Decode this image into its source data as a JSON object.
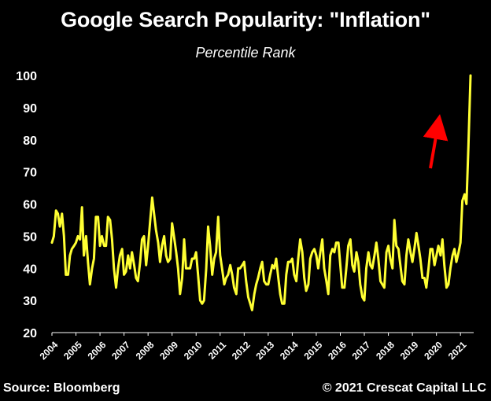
{
  "chart_data": {
    "type": "line",
    "title": "Google Search Popularity: \"Inflation\"",
    "subtitle": "Percentile Rank",
    "xlabel": "",
    "ylabel": "",
    "ylim": [
      20,
      100
    ],
    "yticks": [
      20,
      30,
      40,
      50,
      60,
      70,
      80,
      90,
      100
    ],
    "xticks": [
      "2004",
      "2005",
      "2006",
      "2007",
      "2008",
      "2009",
      "2010",
      "2011",
      "2012",
      "2013",
      "2014",
      "2015",
      "2016",
      "2017",
      "2018",
      "2019",
      "2020",
      "2021"
    ],
    "xlim": [
      2004,
      2021.55
    ],
    "grid": false,
    "legend": "none",
    "line_color": "#ffff33",
    "arrow_color": "#ff0000",
    "series": [
      {
        "x": [
          2004.0,
          2004.08,
          2004.17,
          2004.25,
          2004.33,
          2004.42,
          2004.5,
          2004.58,
          2004.67,
          2004.75,
          2004.83,
          2004.92,
          2005.0,
          2005.08,
          2005.17,
          2005.25,
          2005.33,
          2005.42,
          2005.5,
          2005.58,
          2005.67,
          2005.75,
          2005.83,
          2005.92,
          2006.0,
          2006.08,
          2006.17,
          2006.25,
          2006.33,
          2006.42,
          2006.5,
          2006.58,
          2006.67,
          2006.75,
          2006.83,
          2006.92,
          2007.0,
          2007.08,
          2007.17,
          2007.25,
          2007.33,
          2007.42,
          2007.5,
          2007.58,
          2007.67,
          2007.75,
          2007.83,
          2007.92,
          2008.0,
          2008.08,
          2008.17,
          2008.25,
          2008.33,
          2008.42,
          2008.5,
          2008.58,
          2008.67,
          2008.75,
          2008.83,
          2008.92,
          2009.0,
          2009.08,
          2009.17,
          2009.25,
          2009.33,
          2009.42,
          2009.5,
          2009.58,
          2009.67,
          2009.75,
          2009.83,
          2009.92,
          2010.0,
          2010.08,
          2010.17,
          2010.25,
          2010.33,
          2010.42,
          2010.5,
          2010.58,
          2010.67,
          2010.75,
          2010.83,
          2010.92,
          2011.0,
          2011.08,
          2011.17,
          2011.25,
          2011.33,
          2011.42,
          2011.5,
          2011.58,
          2011.67,
          2011.75,
          2011.83,
          2011.92,
          2012.0,
          2012.08,
          2012.17,
          2012.25,
          2012.33,
          2012.42,
          2012.5,
          2012.58,
          2012.67,
          2012.75,
          2012.83,
          2012.92,
          2013.0,
          2013.08,
          2013.17,
          2013.25,
          2013.33,
          2013.42,
          2013.5,
          2013.58,
          2013.67,
          2013.75,
          2013.83,
          2013.92,
          2014.0,
          2014.08,
          2014.17,
          2014.25,
          2014.33,
          2014.42,
          2014.5,
          2014.58,
          2014.67,
          2014.75,
          2014.83,
          2014.92,
          2015.0,
          2015.08,
          2015.17,
          2015.25,
          2015.33,
          2015.42,
          2015.5,
          2015.58,
          2015.67,
          2015.75,
          2015.83,
          2015.92,
          2016.0,
          2016.08,
          2016.17,
          2016.25,
          2016.33,
          2016.42,
          2016.5,
          2016.58,
          2016.67,
          2016.75,
          2016.83,
          2016.92,
          2017.0,
          2017.08,
          2017.17,
          2017.25,
          2017.33,
          2017.42,
          2017.5,
          2017.58,
          2017.67,
          2017.75,
          2017.83,
          2017.92,
          2018.0,
          2018.08,
          2018.17,
          2018.25,
          2018.33,
          2018.42,
          2018.5,
          2018.58,
          2018.67,
          2018.75,
          2018.83,
          2018.92,
          2019.0,
          2019.08,
          2019.17,
          2019.25,
          2019.33,
          2019.42,
          2019.5,
          2019.58,
          2019.67,
          2019.75,
          2019.83,
          2019.92,
          2020.0,
          2020.08,
          2020.17,
          2020.25,
          2020.33,
          2020.42,
          2020.5,
          2020.58,
          2020.67,
          2020.75,
          2020.83,
          2020.92,
          2021.0,
          2021.08,
          2021.17,
          2021.25,
          2021.33,
          2021.42
        ],
        "y": [
          48,
          50,
          58,
          57,
          53,
          57,
          50,
          38,
          38,
          44,
          46,
          47,
          48,
          50,
          49,
          59,
          44,
          50,
          42,
          35,
          40,
          43,
          56,
          56,
          47,
          50,
          47,
          47,
          56,
          55,
          49,
          40,
          34,
          40,
          44,
          46,
          38,
          39,
          44,
          40,
          45,
          41,
          37,
          36,
          42,
          49,
          50,
          41,
          47,
          54,
          62,
          57,
          52,
          48,
          42,
          47,
          50,
          44,
          42,
          43,
          54,
          50,
          45,
          40,
          32,
          37,
          49,
          40,
          40,
          40,
          43,
          43,
          45,
          38,
          30,
          29,
          30,
          40,
          53,
          47,
          38,
          43,
          45,
          56,
          44,
          40,
          35,
          37,
          38,
          41,
          38,
          34,
          32,
          40,
          40,
          41,
          42,
          36,
          31,
          29,
          27,
          32,
          35,
          37,
          40,
          42,
          36,
          35,
          35,
          38,
          41,
          40,
          43,
          37,
          32,
          29,
          29,
          38,
          42,
          42,
          43,
          38,
          36,
          43,
          49,
          45,
          37,
          33,
          35,
          43,
          45,
          46,
          44,
          40,
          45,
          49,
          40,
          36,
          32,
          44,
          46,
          45,
          48,
          48,
          41,
          34,
          34,
          40,
          47,
          49,
          41,
          39,
          45,
          42,
          35,
          31,
          30,
          40,
          45,
          41,
          40,
          44,
          48,
          43,
          36,
          35,
          34,
          45,
          47,
          43,
          40,
          55,
          47,
          46,
          41,
          36,
          35,
          44,
          49,
          45,
          42,
          46,
          51,
          47,
          43,
          37,
          37,
          34,
          40,
          46,
          46,
          41,
          44,
          47,
          44,
          49,
          41,
          34,
          35,
          40,
          44,
          46,
          42,
          45,
          48,
          61,
          63,
          60,
          78,
          100
        ]
      }
    ]
  },
  "source": "Source: Bloomberg",
  "copyright": "© 2021 Crescat Capital LLC"
}
